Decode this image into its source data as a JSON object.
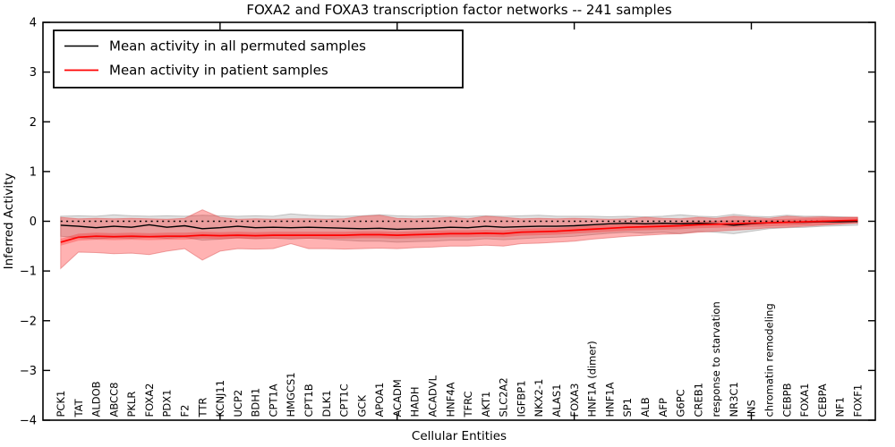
{
  "figure": {
    "title": "FOXA2 and FOXA3 transcription factor networks -- 241 samples",
    "xlabel": "Cellular Entities",
    "ylabel": "Inferred Activity",
    "background": "#ffffff"
  },
  "legend": {
    "position": "upper left",
    "items": [
      {
        "label": "Mean activity in all permuted samples",
        "color": "#000000"
      },
      {
        "label": "Mean activity in patient samples",
        "color": "#ff0000"
      }
    ]
  },
  "chart_data": {
    "type": "line",
    "title": "FOXA2 and FOXA3 transcription factor networks -- 241 samples",
    "xlabel": "Cellular Entities",
    "ylabel": "Inferred Activity",
    "ylim": [
      -4,
      4
    ],
    "yticks": [
      4,
      3,
      2,
      1,
      0,
      -1,
      -2,
      -3,
      -4
    ],
    "ytick_labels": [
      "4",
      "3",
      "2",
      "1",
      "0",
      "−1",
      "−2",
      "−3",
      "−4"
    ],
    "x_major_ticks": [
      10,
      20,
      30,
      40
    ],
    "grid": false,
    "zero_line": {
      "y": 0,
      "style": "dotted",
      "color": "#000000"
    },
    "categories": [
      "PCK1",
      "TAT",
      "ALDOB",
      "ABCC8",
      "PKLR",
      "FOXA2",
      "PDX1",
      "F2",
      "TTR",
      "KCNJ11",
      "UCP2",
      "BDH1",
      "CPT1A",
      "HMGCS1",
      "CPT1B",
      "DLK1",
      "CPT1C",
      "GCK",
      "APOA1",
      "ACADM",
      "HADH",
      "ACADVL",
      "HNF4A",
      "TFRC",
      "AKT1",
      "SLC2A2",
      "IGFBP1",
      "NKX2-1",
      "ALAS1",
      "FOXA3",
      "HNF1A (dimer)",
      "HNF1A",
      "SP1",
      "ALB",
      "AFP",
      "G6PC",
      "CREB1",
      "response to starvation",
      "NR3C1",
      "INS",
      "chromatin remodeling",
      "CEBPB",
      "FOXA1",
      "CEBPA",
      "NF1",
      "FOXF1"
    ],
    "series": [
      {
        "name": "Mean activity in all permuted samples",
        "color": "#000000",
        "values": [
          -0.08,
          -0.1,
          -0.13,
          -0.1,
          -0.12,
          -0.07,
          -0.12,
          -0.09,
          -0.15,
          -0.13,
          -0.1,
          -0.13,
          -0.12,
          -0.13,
          -0.12,
          -0.13,
          -0.14,
          -0.15,
          -0.14,
          -0.16,
          -0.15,
          -0.14,
          -0.12,
          -0.13,
          -0.1,
          -0.12,
          -0.11,
          -0.1,
          -0.1,
          -0.09,
          -0.07,
          -0.05,
          -0.04,
          -0.05,
          -0.04,
          -0.05,
          -0.04,
          -0.05,
          -0.08,
          -0.05,
          -0.03,
          -0.02,
          -0.02,
          -0.01,
          -0.01,
          0.0
        ]
      },
      {
        "name": "Mean activity in patient samples",
        "color": "#ff0000",
        "values": [
          -0.42,
          -0.32,
          -0.3,
          -0.31,
          -0.3,
          -0.31,
          -0.3,
          -0.3,
          -0.28,
          -0.29,
          -0.28,
          -0.29,
          -0.28,
          -0.28,
          -0.28,
          -0.28,
          -0.28,
          -0.27,
          -0.27,
          -0.28,
          -0.27,
          -0.26,
          -0.25,
          -0.25,
          -0.24,
          -0.25,
          -0.22,
          -0.21,
          -0.2,
          -0.18,
          -0.16,
          -0.14,
          -0.12,
          -0.11,
          -0.1,
          -0.09,
          -0.07,
          -0.06,
          -0.05,
          -0.04,
          -0.03,
          -0.02,
          -0.01,
          0.0,
          0.01,
          0.02
        ]
      }
    ],
    "bands": [
      {
        "name": "permuted-std-band",
        "fill": "#000000",
        "opacity": 0.12,
        "stroke": "#999999",
        "upper": [
          0.1,
          0.11,
          0.1,
          0.13,
          0.11,
          0.1,
          0.11,
          0.1,
          0.12,
          0.11,
          0.1,
          0.11,
          0.1,
          0.15,
          0.12,
          0.11,
          0.1,
          0.11,
          0.13,
          0.11,
          0.1,
          0.11,
          0.1,
          0.1,
          0.11,
          0.1,
          0.11,
          0.12,
          0.1,
          0.1,
          0.1,
          0.09,
          0.1,
          0.09,
          0.1,
          0.13,
          0.1,
          0.09,
          0.14,
          0.1,
          0.09,
          0.12,
          0.1,
          0.1,
          0.09,
          0.08
        ],
        "lower": [
          -0.3,
          -0.33,
          -0.35,
          -0.33,
          -0.34,
          -0.32,
          -0.34,
          -0.32,
          -0.38,
          -0.36,
          -0.33,
          -0.35,
          -0.34,
          -0.36,
          -0.34,
          -0.36,
          -0.38,
          -0.4,
          -0.4,
          -0.42,
          -0.41,
          -0.4,
          -0.38,
          -0.38,
          -0.35,
          -0.37,
          -0.35,
          -0.33,
          -0.32,
          -0.3,
          -0.27,
          -0.24,
          -0.22,
          -0.24,
          -0.22,
          -0.25,
          -0.2,
          -0.22,
          -0.25,
          -0.2,
          -0.15,
          -0.13,
          -0.12,
          -0.1,
          -0.09,
          -0.08
        ]
      },
      {
        "name": "patient-std-band",
        "fill": "#ff0000",
        "opacity": 0.3,
        "stroke": "#e06060",
        "upper": [
          0.08,
          0.05,
          0.06,
          0.05,
          0.06,
          0.05,
          0.04,
          0.06,
          0.23,
          0.08,
          0.04,
          0.05,
          0.04,
          0.05,
          0.05,
          0.04,
          0.05,
          0.1,
          0.12,
          0.06,
          0.05,
          0.06,
          0.08,
          0.05,
          0.1,
          0.08,
          0.05,
          0.06,
          0.05,
          0.06,
          0.05,
          0.04,
          0.05,
          0.08,
          0.06,
          0.05,
          0.08,
          0.06,
          0.1,
          0.08,
          0.06,
          0.1,
          0.08,
          0.09,
          0.08,
          0.08
        ],
        "lower": [
          -0.95,
          -0.62,
          -0.63,
          -0.65,
          -0.64,
          -0.67,
          -0.6,
          -0.55,
          -0.78,
          -0.6,
          -0.55,
          -0.56,
          -0.55,
          -0.45,
          -0.55,
          -0.55,
          -0.56,
          -0.55,
          -0.54,
          -0.55,
          -0.53,
          -0.52,
          -0.5,
          -0.5,
          -0.48,
          -0.5,
          -0.45,
          -0.44,
          -0.42,
          -0.4,
          -0.36,
          -0.33,
          -0.3,
          -0.28,
          -0.26,
          -0.25,
          -0.22,
          -0.2,
          -0.18,
          -0.16,
          -0.13,
          -0.12,
          -0.1,
          -0.08,
          -0.06,
          -0.03
        ]
      },
      {
        "name": "patient-inner-band",
        "fill": "#ff0000",
        "opacity": 0.25,
        "series": 1,
        "delta": 0.07
      }
    ]
  }
}
